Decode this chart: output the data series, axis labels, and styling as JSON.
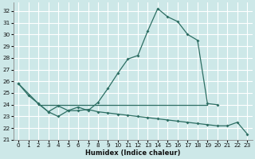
{
  "xlabel": "Humidex (Indice chaleur)",
  "bg_color": "#cde8e8",
  "grid_color": "#ffffff",
  "line_color": "#2d6e63",
  "xlim": [
    -0.5,
    23.5
  ],
  "ylim": [
    21,
    32.7
  ],
  "yticks": [
    21,
    22,
    23,
    24,
    25,
    26,
    27,
    28,
    29,
    30,
    31,
    32
  ],
  "xticks": [
    0,
    1,
    2,
    3,
    4,
    5,
    6,
    7,
    8,
    9,
    10,
    11,
    12,
    13,
    14,
    15,
    16,
    17,
    18,
    19,
    20,
    21,
    22,
    23
  ],
  "series1_x": [
    0,
    1,
    2,
    3,
    4,
    5,
    6,
    7,
    8,
    9,
    10,
    11,
    12,
    13,
    14,
    15,
    16,
    17,
    18,
    19,
    20
  ],
  "series1_y": [
    25.8,
    24.8,
    24.1,
    23.4,
    23.0,
    23.5,
    23.8,
    23.5,
    24.2,
    25.4,
    26.7,
    27.9,
    28.2,
    30.3,
    32.2,
    31.5,
    31.1,
    30.0,
    29.5,
    24.1,
    24.0
  ],
  "series2_x": [
    2,
    3,
    4,
    5,
    6,
    7,
    8,
    9,
    10,
    11,
    12,
    13,
    14,
    15,
    16,
    17,
    18,
    19
  ],
  "series2_y": [
    24.0,
    24.0,
    24.0,
    24.0,
    24.0,
    24.0,
    24.0,
    24.0,
    24.0,
    24.0,
    24.0,
    24.0,
    24.0,
    24.0,
    24.0,
    24.0,
    24.0,
    24.0
  ],
  "series3_x": [
    0,
    2,
    3,
    4,
    5,
    6,
    7,
    8,
    9,
    10,
    11,
    12,
    13,
    14,
    15,
    16,
    17,
    18,
    19,
    20,
    21,
    22,
    23
  ],
  "series3_y": [
    25.8,
    24.1,
    23.4,
    23.9,
    23.5,
    23.5,
    23.6,
    23.4,
    23.3,
    23.2,
    23.1,
    23.0,
    22.9,
    22.8,
    22.7,
    22.6,
    22.5,
    22.4,
    22.3,
    22.2,
    22.2,
    22.5,
    21.5
  ]
}
